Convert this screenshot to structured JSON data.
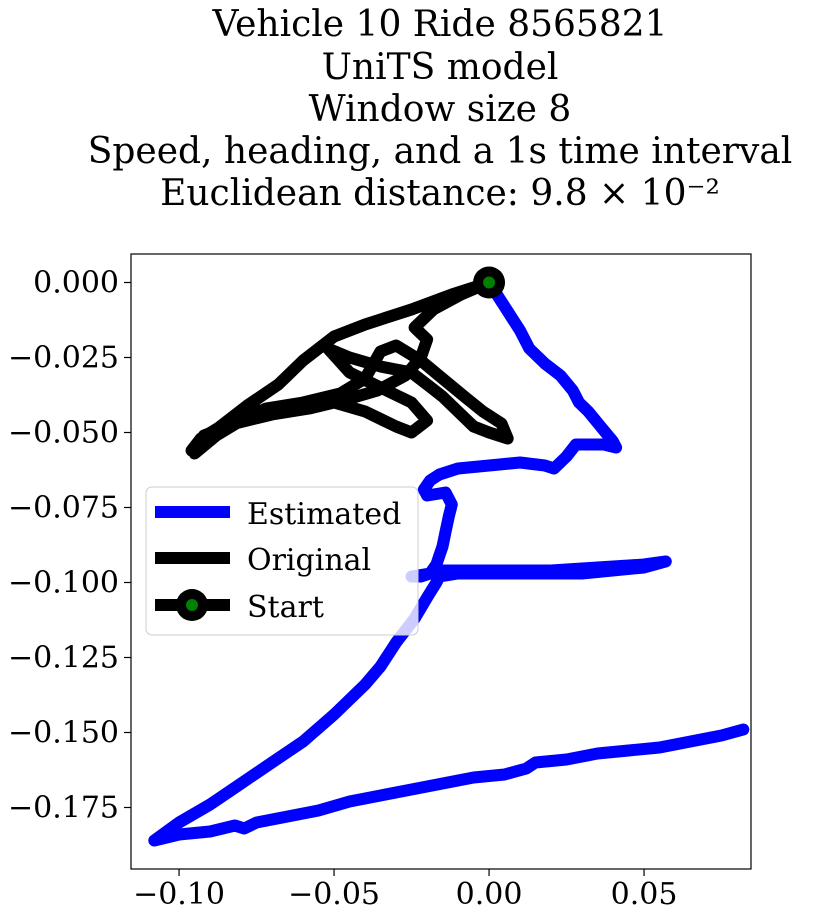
{
  "chart_data": {
    "type": "line",
    "title_lines": [
      "Vehicle 10 Ride 8565821",
      "UniTS model",
      "Window size 8",
      "Speed, heading, and a 1s time interval",
      "Euclidean distance: 9.8 × 10⁻²"
    ],
    "xlabel": "",
    "ylabel": "",
    "xlim": [
      -0.1155,
      0.0845
    ],
    "ylim": [
      -0.1955,
      0.0095
    ],
    "x_ticks": [
      {
        "value": -0.1,
        "label": "−0.10"
      },
      {
        "value": -0.05,
        "label": "−0.05"
      },
      {
        "value": 0.0,
        "label": "0.00"
      },
      {
        "value": 0.05,
        "label": "0.05"
      }
    ],
    "y_ticks": [
      {
        "value": 0.0,
        "label": "0.000"
      },
      {
        "value": -0.025,
        "label": "−0.025"
      },
      {
        "value": -0.05,
        "label": "−0.050"
      },
      {
        "value": -0.075,
        "label": "−0.075"
      },
      {
        "value": -0.1,
        "label": "−0.100"
      },
      {
        "value": -0.125,
        "label": "−0.125"
      },
      {
        "value": -0.15,
        "label": "−0.150"
      },
      {
        "value": -0.175,
        "label": "−0.175"
      }
    ],
    "grid": false,
    "legend_position": "center-left",
    "series": [
      {
        "name": "Estimated",
        "color": "#0000ff",
        "points": [
          [
            0.0,
            0.0
          ],
          [
            0.005,
            -0.008
          ],
          [
            0.01,
            -0.016
          ],
          [
            0.013,
            -0.022
          ],
          [
            0.018,
            -0.027
          ],
          [
            0.023,
            -0.031
          ],
          [
            0.027,
            -0.036
          ],
          [
            0.029,
            -0.04
          ],
          [
            0.032,
            -0.043
          ],
          [
            0.036,
            -0.048
          ],
          [
            0.04,
            -0.053
          ],
          [
            0.041,
            -0.055
          ],
          [
            0.037,
            -0.054
          ],
          [
            0.032,
            -0.054
          ],
          [
            0.028,
            -0.054
          ],
          [
            0.025,
            -0.058
          ],
          [
            0.021,
            -0.062
          ],
          [
            0.018,
            -0.061
          ],
          [
            0.01,
            -0.06
          ],
          [
            0.0,
            -0.061
          ],
          [
            -0.01,
            -0.062
          ],
          [
            -0.016,
            -0.064
          ],
          [
            -0.019,
            -0.066
          ],
          [
            -0.021,
            -0.069
          ],
          [
            -0.02,
            -0.071
          ],
          [
            -0.014,
            -0.07
          ],
          [
            -0.012,
            -0.074
          ],
          [
            -0.013,
            -0.078
          ],
          [
            -0.014,
            -0.083
          ],
          [
            -0.015,
            -0.088
          ],
          [
            -0.016,
            -0.091
          ],
          [
            -0.017,
            -0.094
          ],
          [
            -0.019,
            -0.097
          ],
          [
            -0.022,
            -0.098
          ],
          [
            -0.025,
            -0.098
          ],
          [
            -0.019,
            -0.097
          ],
          [
            -0.015,
            -0.096
          ],
          [
            0.0,
            -0.096
          ],
          [
            0.02,
            -0.096
          ],
          [
            0.035,
            -0.095
          ],
          [
            0.05,
            -0.094
          ],
          [
            0.057,
            -0.093
          ],
          [
            0.05,
            -0.095
          ],
          [
            0.03,
            -0.097
          ],
          [
            0.01,
            -0.097
          ],
          [
            -0.01,
            -0.097
          ],
          [
            -0.016,
            -0.098
          ],
          [
            -0.017,
            -0.1
          ],
          [
            -0.02,
            -0.105
          ],
          [
            -0.024,
            -0.112
          ],
          [
            -0.03,
            -0.12
          ],
          [
            -0.035,
            -0.128
          ],
          [
            -0.04,
            -0.134
          ],
          [
            -0.05,
            -0.144
          ],
          [
            -0.06,
            -0.153
          ],
          [
            -0.07,
            -0.16
          ],
          [
            -0.08,
            -0.167
          ],
          [
            -0.09,
            -0.174
          ],
          [
            -0.1,
            -0.18
          ],
          [
            -0.108,
            -0.186
          ],
          [
            -0.1,
            -0.184
          ],
          [
            -0.09,
            -0.183
          ],
          [
            -0.082,
            -0.181
          ],
          [
            -0.079,
            -0.182
          ],
          [
            -0.075,
            -0.18
          ],
          [
            -0.065,
            -0.178
          ],
          [
            -0.055,
            -0.176
          ],
          [
            -0.045,
            -0.173
          ],
          [
            -0.035,
            -0.171
          ],
          [
            -0.025,
            -0.169
          ],
          [
            -0.015,
            -0.167
          ],
          [
            -0.005,
            -0.165
          ],
          [
            0.005,
            -0.164
          ],
          [
            0.012,
            -0.162
          ],
          [
            0.015,
            -0.16
          ],
          [
            0.025,
            -0.159
          ],
          [
            0.035,
            -0.157
          ],
          [
            0.045,
            -0.156
          ],
          [
            0.055,
            -0.155
          ],
          [
            0.065,
            -0.153
          ],
          [
            0.075,
            -0.151
          ],
          [
            0.082,
            -0.149
          ]
        ]
      },
      {
        "name": "Original",
        "color": "#000000",
        "points": [
          [
            0.0,
            0.0
          ],
          [
            -0.012,
            -0.004
          ],
          [
            -0.025,
            -0.009
          ],
          [
            -0.04,
            -0.014
          ],
          [
            -0.05,
            -0.018
          ],
          [
            -0.06,
            -0.026
          ],
          [
            -0.068,
            -0.034
          ],
          [
            -0.078,
            -0.041
          ],
          [
            -0.088,
            -0.049
          ],
          [
            -0.096,
            -0.056
          ],
          [
            -0.093,
            -0.052
          ],
          [
            -0.085,
            -0.047
          ],
          [
            -0.076,
            -0.043
          ],
          [
            -0.064,
            -0.041
          ],
          [
            -0.05,
            -0.04
          ],
          [
            -0.04,
            -0.043
          ],
          [
            -0.03,
            -0.048
          ],
          [
            -0.025,
            -0.05
          ],
          [
            -0.02,
            -0.046
          ],
          [
            -0.025,
            -0.04
          ],
          [
            -0.035,
            -0.035
          ],
          [
            -0.045,
            -0.03
          ],
          [
            -0.052,
            -0.022
          ],
          [
            -0.045,
            -0.025
          ],
          [
            -0.035,
            -0.028
          ],
          [
            -0.025,
            -0.03
          ],
          [
            -0.02,
            -0.034
          ],
          [
            -0.015,
            -0.038
          ],
          [
            -0.01,
            -0.043
          ],
          [
            -0.005,
            -0.048
          ],
          [
            0.0,
            -0.05
          ],
          [
            0.006,
            -0.052
          ],
          [
            0.004,
            -0.047
          ],
          [
            -0.002,
            -0.043
          ],
          [
            -0.008,
            -0.038
          ],
          [
            -0.015,
            -0.032
          ],
          [
            -0.022,
            -0.026
          ],
          [
            -0.03,
            -0.021
          ],
          [
            -0.035,
            -0.023
          ],
          [
            -0.04,
            -0.032
          ],
          [
            -0.048,
            -0.037
          ],
          [
            -0.06,
            -0.04
          ],
          [
            -0.072,
            -0.042
          ],
          [
            -0.08,
            -0.046
          ],
          [
            -0.088,
            -0.051
          ],
          [
            -0.095,
            -0.057
          ],
          [
            -0.092,
            -0.051
          ],
          [
            -0.082,
            -0.047
          ],
          [
            -0.07,
            -0.044
          ],
          [
            -0.058,
            -0.042
          ],
          [
            -0.046,
            -0.039
          ],
          [
            -0.036,
            -0.036
          ],
          [
            -0.027,
            -0.031
          ],
          [
            -0.022,
            -0.025
          ],
          [
            -0.02,
            -0.019
          ],
          [
            -0.024,
            -0.015
          ],
          [
            -0.018,
            -0.009
          ],
          [
            -0.009,
            -0.004
          ],
          [
            0.0,
            0.0
          ]
        ]
      }
    ],
    "start_point": {
      "name": "Start",
      "x": 0.0,
      "y": 0.0,
      "marker_color": "#008000",
      "edge_color": "#000000"
    }
  }
}
